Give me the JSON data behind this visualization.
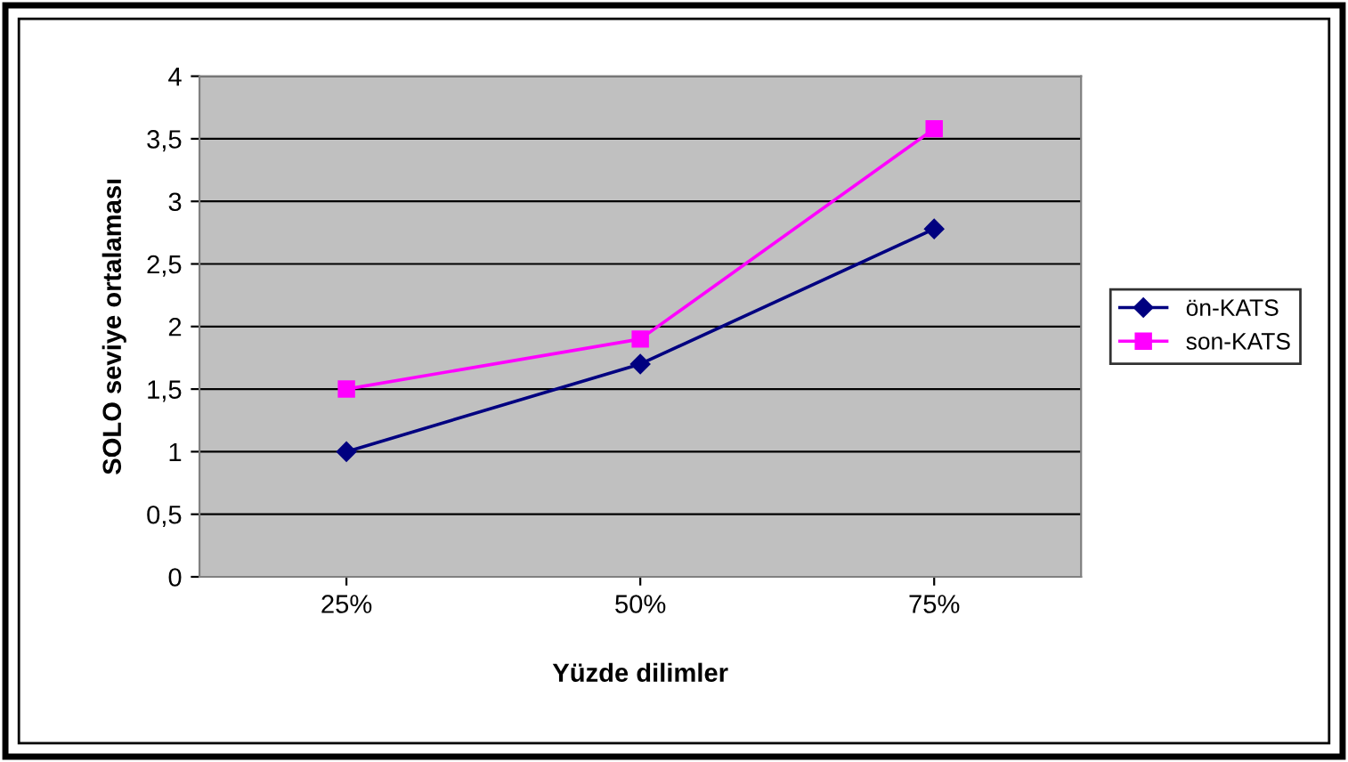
{
  "chart_data": {
    "type": "line",
    "xlabel": "Yüzde dilimler",
    "ylabel": "SOLO seviye ortalaması",
    "categories": [
      "25%",
      "50%",
      "75%"
    ],
    "series": [
      {
        "name": "ön-KATS",
        "color": "#000080",
        "marker": "diamond",
        "values": [
          1.0,
          1.7,
          2.78
        ]
      },
      {
        "name": "son-KATS",
        "color": "#ff00ff",
        "marker": "square",
        "values": [
          1.5,
          1.9,
          3.58
        ]
      }
    ],
    "ylim": [
      0,
      4
    ],
    "yticks": [
      0,
      {
        "value": 0.5,
        "label": "0,5"
      },
      1,
      {
        "value": 1.5,
        "label": "1,5"
      },
      2,
      {
        "value": 2.5,
        "label": "2,5"
      },
      3,
      {
        "value": 3.5,
        "label": "3,5"
      },
      4
    ],
    "grid": "y",
    "legend": "right",
    "line_style": "solid"
  }
}
